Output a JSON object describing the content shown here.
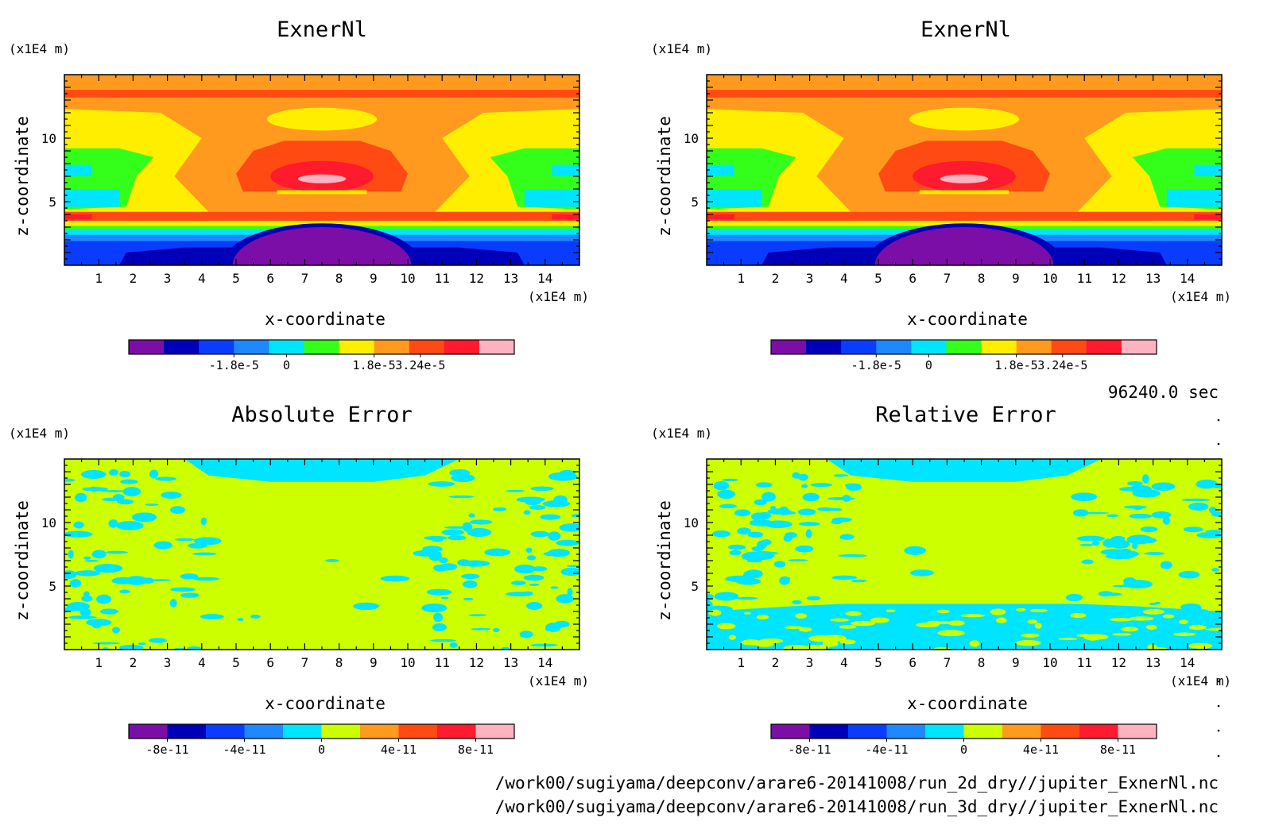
{
  "chart_data": [
    {
      "type": "heatmap",
      "title": "ExnerNl",
      "xlabel": "x-coordinate",
      "ylabel": "z-coordinate",
      "x_unit": "(x1E4 m)",
      "y_unit": "(x1E4 m)",
      "xlim": [
        0,
        15
      ],
      "ylim": [
        0,
        15
      ],
      "x_ticks": [
        1,
        2,
        3,
        4,
        5,
        6,
        7,
        8,
        9,
        10,
        11,
        12,
        13,
        14
      ],
      "y_ticks": [
        5,
        10
      ],
      "colorbar": {
        "levels": [
          -3.6e-05,
          -2.7e-05,
          -1.8e-05,
          -9e-06,
          0,
          9e-06,
          1.8e-05,
          2.7e-05,
          3.24e-05
        ],
        "tick_values": [
          -1.8e-05,
          0,
          1.8e-05,
          3.24e-05
        ],
        "tick_labels": [
          "-1.8e-5",
          "0",
          "1.8e-5",
          "3.24e-5"
        ],
        "colors": [
          "#7b0ea6",
          "#0000b8",
          "#0a3cff",
          "#1e88ff",
          "#00e5ff",
          "#33ff1a",
          "#ffee00",
          "#ff9a1f",
          "#ff4a14",
          "#ff1a2e",
          "#ffb3c0"
        ]
      }
    },
    {
      "type": "heatmap",
      "title": "ExnerNl",
      "xlabel": "x-coordinate",
      "ylabel": "z-coordinate",
      "x_unit": "(x1E4 m)",
      "y_unit": "(x1E4 m)",
      "xlim": [
        0,
        15
      ],
      "ylim": [
        0,
        15
      ],
      "x_ticks": [
        1,
        2,
        3,
        4,
        5,
        6,
        7,
        8,
        9,
        10,
        11,
        12,
        13,
        14
      ],
      "y_ticks": [
        5,
        10
      ],
      "colorbar": {
        "tick_values": [
          -1.8e-05,
          0,
          1.8e-05,
          3.24e-05
        ],
        "tick_labels": [
          "-1.8e-5",
          "0",
          "1.8e-5",
          "3.24e-5"
        ]
      }
    },
    {
      "type": "heatmap",
      "title": "Absolute Error",
      "xlabel": "x-coordinate",
      "ylabel": "z-coordinate",
      "x_unit": "(x1E4 m)",
      "y_unit": "(x1E4 m)",
      "xlim": [
        0,
        15
      ],
      "ylim": [
        0,
        15
      ],
      "x_ticks": [
        1,
        2,
        3,
        4,
        5,
        6,
        7,
        8,
        9,
        10,
        11,
        12,
        13,
        14
      ],
      "y_ticks": [
        5,
        10
      ],
      "colorbar": {
        "levels": [
          -1e-10,
          -8e-11,
          -6e-11,
          -4e-11,
          -2e-11,
          0,
          2e-11,
          4e-11,
          6e-11,
          8e-11,
          1e-10
        ],
        "tick_values": [
          -8e-11,
          -4e-11,
          0,
          4e-11,
          8e-11
        ],
        "tick_labels": [
          "-8e-11",
          "-4e-11",
          "0",
          "4e-11",
          "8e-11"
        ],
        "colors": [
          "#7b0ea6",
          "#0000b8",
          "#0a3cff",
          "#1e88ff",
          "#00e5ff",
          "#ccff00",
          "#ff9a1f",
          "#ff4a14",
          "#ff1a2e",
          "#ffb3c0"
        ]
      }
    },
    {
      "type": "heatmap",
      "title": "Relative Error",
      "xlabel": "x-coordinate",
      "ylabel": "z-coordinate",
      "x_unit": "(x1E4 m)",
      "y_unit": "(x1E4 m)",
      "xlim": [
        0,
        15
      ],
      "ylim": [
        0,
        15
      ],
      "x_ticks": [
        1,
        2,
        3,
        4,
        5,
        6,
        7,
        8,
        9,
        10,
        11,
        12,
        13,
        14
      ],
      "y_ticks": [
        5,
        10
      ],
      "colorbar": {
        "tick_values": [
          -8e-11,
          -4e-11,
          0,
          4e-11,
          8e-11
        ],
        "tick_labels": [
          "-8e-11",
          "-4e-11",
          "0",
          "4e-11",
          "8e-11"
        ]
      }
    }
  ],
  "annotations": {
    "time": "96240.0 sec",
    "file1": "/work00/sugiyama/deepconv/arare6-20141008/run_2d_dry//jupiter_ExnerNl.nc",
    "file2": "/work00/sugiyama/deepconv/arare6-20141008/run_3d_dry//jupiter_ExnerNl.nc"
  },
  "colors": {
    "frame": "#000000",
    "background": "#ffffff"
  }
}
